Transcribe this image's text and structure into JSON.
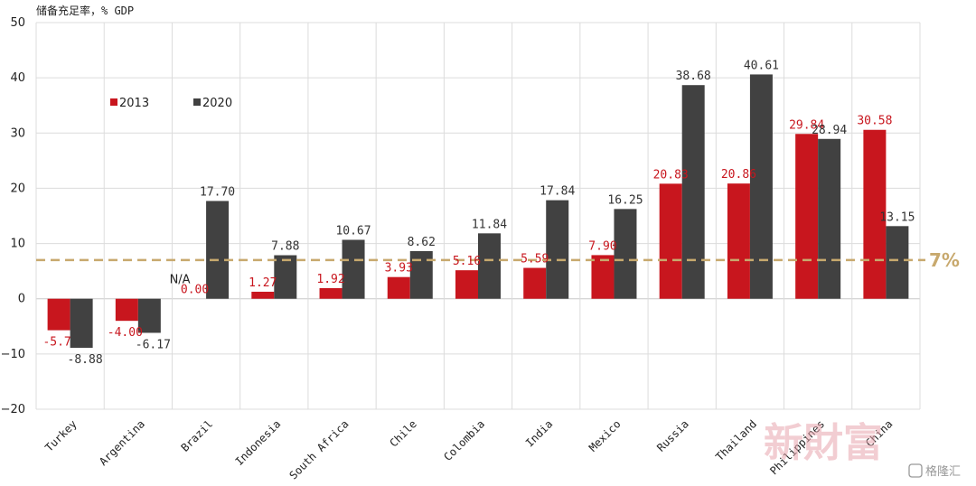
{
  "chart_data": {
    "type": "bar",
    "ylabel": "储备充足率，% GDP",
    "ylim": [
      -20,
      50
    ],
    "yticks": [
      -20,
      -10,
      0,
      10,
      20,
      30,
      40,
      50
    ],
    "grid": true,
    "legend_position": "top-left",
    "categories": [
      "Turkey",
      "Argentina",
      "Brazil",
      "Indonesia",
      "South Africa",
      "Chile",
      "Colombia",
      "India",
      "Mexico",
      "Russia",
      "Thailand",
      "Philippines",
      "China"
    ],
    "series": [
      {
        "name": "2013",
        "color": "#c8161e",
        "label_color": "#c8161e",
        "values": [
          -5.7,
          -4.0,
          0.0,
          1.27,
          1.92,
          3.93,
          5.16,
          5.59,
          7.9,
          20.83,
          20.86,
          29.84,
          30.58
        ],
        "labels": [
          "-5.7",
          "-4.00",
          "0.00",
          "1.27",
          "1.92",
          "3.93",
          "5.16",
          "5.59",
          "7.90",
          "20.83",
          "20.86",
          "29.84",
          "30.58"
        ]
      },
      {
        "name": "2020",
        "color": "#414141",
        "label_color": "#333333",
        "values": [
          -8.88,
          -6.17,
          17.7,
          7.88,
          10.67,
          8.62,
          11.84,
          17.84,
          16.25,
          38.68,
          40.61,
          28.94,
          13.15
        ],
        "labels": [
          "-8.88",
          "-6.17",
          "17.70",
          "7.88",
          "10.67",
          "8.62",
          "11.84",
          "17.84",
          "16.25",
          "38.68",
          "40.61",
          "28.94",
          "13.15"
        ]
      }
    ],
    "reference_line": {
      "value": 7,
      "label": "7%",
      "color": "#c8a96e"
    },
    "annotations": [
      {
        "text": "N/A",
        "category": "Brazil"
      }
    ]
  },
  "watermark": {
    "text": "新財富",
    "brand": "格隆汇"
  }
}
